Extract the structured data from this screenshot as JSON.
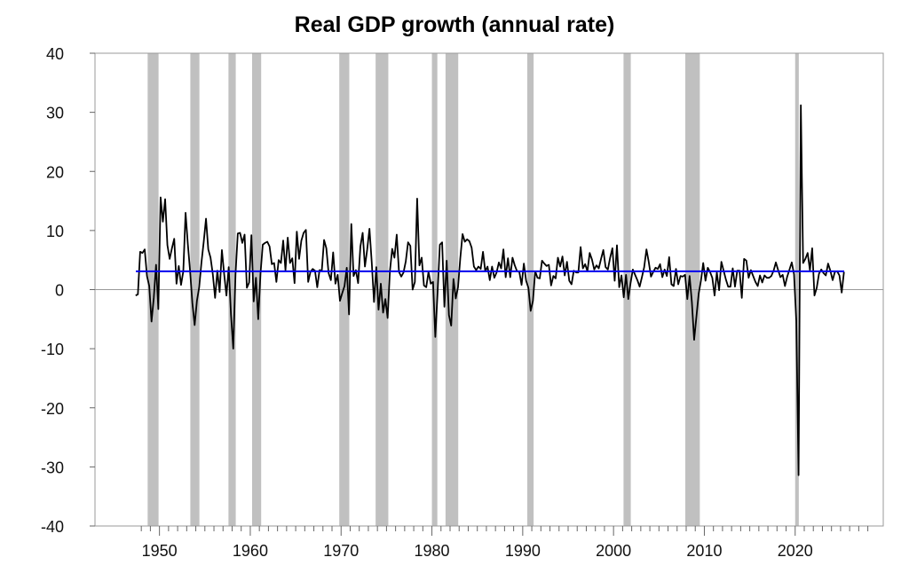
{
  "chart_data": {
    "type": "line",
    "title": "Real GDP growth (annual rate)",
    "xlabel": "",
    "ylabel": "",
    "xlim": [
      1942.9,
      2029.7
    ],
    "ylim": [
      -40,
      40
    ],
    "x_ticks": [
      1950,
      1960,
      1970,
      1980,
      1990,
      2000,
      2010,
      2020
    ],
    "y_ticks": [
      -40,
      -30,
      -20,
      -10,
      0,
      10,
      20,
      30,
      40
    ],
    "grid": false,
    "colors": {
      "series": "#000000",
      "mean": "#0000ee",
      "recession": "#c0c0c0",
      "zero": "#999999"
    },
    "mean": {
      "value": 3.1,
      "x_start": 1947.4,
      "x_end": 2025.4
    },
    "recessions": [
      [
        1948.7,
        1949.9
      ],
      [
        1953.4,
        1954.4
      ],
      [
        1957.6,
        1958.4
      ],
      [
        1960.2,
        1961.2
      ],
      [
        1969.8,
        1970.9
      ],
      [
        1973.8,
        1975.2
      ],
      [
        1980.0,
        1980.6
      ],
      [
        1981.5,
        1982.9
      ],
      [
        1990.5,
        1991.2
      ],
      [
        2001.1,
        2001.9
      ],
      [
        2007.9,
        2009.5
      ],
      [
        2020.0,
        2020.4
      ]
    ],
    "series_start": [
      1947,
      2
    ],
    "values": [
      -1.0,
      -0.8,
      6.4,
      6.2,
      6.8,
      2.3,
      0.6,
      -5.4,
      -1.4,
      4.2,
      -3.3,
      15.6,
      11.5,
      15.3,
      7.5,
      5.2,
      7.0,
      8.6,
      1.0,
      4.0,
      0.8,
      3.1,
      13.0,
      7.7,
      3.1,
      -2.3,
      -6.0,
      -1.9,
      0.4,
      4.6,
      8.1,
      12.0,
      6.8,
      5.4,
      2.6,
      -1.4,
      3.2,
      -0.4,
      6.7,
      2.6,
      -1.0,
      3.8,
      -4.2,
      -10.0,
      2.6,
      9.5,
      9.6,
      7.9,
      9.3,
      0.3,
      1.2,
      9.2,
      -2.0,
      2.0,
      -5.0,
      2.7,
      7.6,
      7.9,
      8.1,
      7.3,
      4.3,
      4.5,
      1.3,
      5.0,
      4.5,
      8.3,
      3.3,
      8.8,
      4.5,
      5.3,
      1.1,
      9.8,
      5.2,
      8.3,
      9.6,
      10.1,
      1.3,
      3.0,
      3.5,
      3.2,
      0.4,
      3.3,
      3.2,
      8.4,
      7.0,
      2.8,
      1.6,
      6.3,
      1.0,
      2.5,
      -1.9,
      -0.6,
      0.6,
      3.7,
      -4.2,
      11.1,
      2.3,
      3.3,
      1.1,
      7.3,
      9.6,
      3.9,
      6.8,
      10.3,
      4.6,
      -2.1,
      3.8,
      -3.4,
      1.0,
      -3.9,
      -1.6,
      -4.8,
      3.1,
      6.9,
      5.4,
      9.3,
      3.0,
      2.2,
      2.9,
      4.8,
      8.0,
      7.4,
      0.0,
      1.3,
      15.4,
      4.1,
      5.4,
      0.7,
      0.4,
      3.0,
      1.0,
      1.3,
      -8.0,
      -0.5,
      7.6,
      8.0,
      -2.9,
      4.9,
      -4.3,
      -6.1,
      1.8,
      -1.5,
      0.4,
      5.3,
      9.4,
      8.1,
      8.5,
      8.2,
      7.1,
      3.9,
      3.3,
      3.9,
      3.5,
      6.4,
      3.1,
      3.9,
      1.6,
      3.9,
      2.0,
      2.9,
      4.6,
      3.6,
      6.8,
      2.1,
      5.3,
      2.1,
      5.4,
      4.1,
      3.1,
      3.0,
      0.8,
      4.4,
      1.5,
      0.3,
      -3.6,
      -1.9,
      3.1,
      2.0,
      1.9,
      4.9,
      4.4,
      4.0,
      4.2,
      0.7,
      2.3,
      1.9,
      5.4,
      3.9,
      5.6,
      2.4,
      4.7,
      1.5,
      0.9,
      3.2,
      2.9,
      2.9,
      7.2,
      3.6,
      4.3,
      3.1,
      6.2,
      5.1,
      3.4,
      4.1,
      3.6,
      5.2,
      6.7,
      3.8,
      3.4,
      5.4,
      7.0,
      1.5,
      7.5,
      0.4,
      2.4,
      -1.3,
      2.5,
      -1.6,
      1.1,
      3.4,
      2.5,
      1.6,
      0.5,
      2.1,
      3.8,
      6.8,
      4.7,
      2.2,
      3.0,
      3.7,
      3.5,
      4.3,
      2.1,
      3.4,
      2.3,
      5.5,
      0.9,
      0.6,
      3.5,
      0.9,
      2.3,
      2.2,
      2.5,
      -1.6,
      2.3,
      -2.1,
      -8.5,
      -4.6,
      -0.7,
      1.5,
      4.5,
      1.5,
      3.7,
      3.0,
      2.0,
      -1.0,
      2.9,
      -0.1,
      4.7,
      3.2,
      1.7,
      0.5,
      0.5,
      3.6,
      0.5,
      3.2,
      3.2,
      -1.4,
      5.2,
      4.9,
      2.0,
      3.3,
      2.3,
      1.3,
      0.6,
      2.4,
      1.2,
      2.4,
      2.0,
      2.0,
      2.3,
      3.2,
      4.6,
      3.3,
      2.1,
      2.5,
      0.6,
      2.2,
      3.4,
      4.6,
      2.6,
      -5.3,
      -31.4,
      31.2,
      4.5,
      5.2,
      6.2,
      3.3,
      7.0,
      -1.0,
      0.3,
      2.7,
      3.4,
      2.8,
      2.4,
      4.4,
      3.2,
      1.6,
      3.0,
      3.1,
      2.4,
      -0.5,
      3.0
    ]
  }
}
